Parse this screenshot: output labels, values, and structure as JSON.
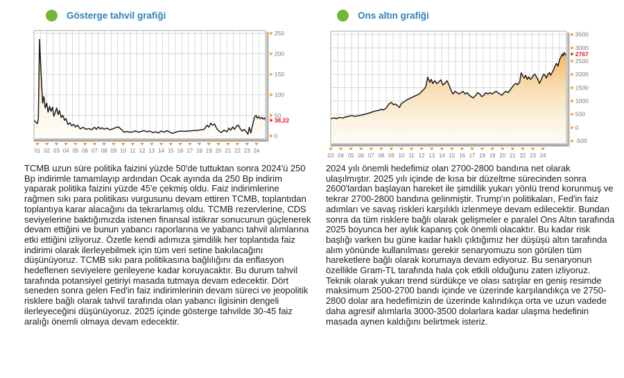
{
  "panels": [
    {
      "title": "Gösterge tahvil grafiği",
      "body": "TCMB uzun süre politika faizini yüzde 50'de tuttuktan sonra 2024'ü 250 Bp indirimle tamamlayıp ardından Ocak ayında da 250 Bp indirim yaparak politika faizini yüzde 45'e çekmiş oldu. Faiz indirimlerine rağmen sıkı para politikası vurgusunu devam ettiren TCMB, toplantıdan toplantıya karar alacağını da tekrarlamış oldu. TCMB rezervlerine, CDS seviyelerine baktığımızda istenen finansal istikrar sonucunun güçlenerek devam ettiğini ve bunun yabancı raporlarına ve yabancı tahvil alımlarına etki ettiğini izliyoruz. Özetle kendi adımıza şimdilik her toplantıda faiz indirimi olarak ilerleyebilmek için tüm veri setine bakılacağını düşünüyoruz. TCMB sıkı para politikasına bağlılığını da enflasyon hedeflenen seviyelere gerileyene kadar koruyacaktır. Bu durum tahvil tarafında potansiyel getiriyi masada tutmaya devam edecektir. Dört seneden sonra gelen Fed'in faiz indirimlerinin devam süreci ve jeopolitik risklere bağlı olarak tahvil tarafında olan yabancı ilgisinin dengeli ilerleyeceğini düşünüyoruz. 2025 içinde gösterge tahvilde 30-45 faiz aralığı önemli olmaya devam edecektir."
    },
    {
      "title": "Ons altın grafiği",
      "body": "2024 yılı önemli hedefimiz olan 2700-2800 bandına net olarak ulaşılmıştır. 2025 yılı içinde de kısa bir düzeltme sürecinden sonra 2600'lardan başlayan hareket ile şimdilik yukarı yönlü trend korunmuş ve tekrar 2700-2800 bandına gelinmiştir. Trump'ın politikaları, Fed'in faiz adımları ve savaş riskleri karşılıklı izlenmeye devam edilecektir. Bundan sonra da tüm risklere bağlı olarak gelişmeler e paralel Ons Altın tarafında 2025 boyunca her aylık kapanış çok önemli olacaktır. Bu kadar risk başlığı varken bu güne kadar haklı çıktığımız her düşüşü altın tarafında alım yönünde kullanılması gerekir senaryomuzu son görülen tüm hareketlere bağlı olarak korumaya devam ediyoruz. Bu senaryonun özellikle Gram-TL tarafında hala çok etkili olduğunu zaten izliyoruz. Teknik olarak yukarı trend sürdükçe ve olası satışlar en geniş resimde maksimum 2500-2700 bandı içinde ve üzerinde karşılandıkça ve 2750-2800 dolar ara hedefimizin de üzerinde kalındıkça orta ve uzun vadede daha agresif alımlarla 3000-3500 dolarlara kadar ulaşma hedefinin masada aynen kaldığını belirtmek isteriz."
    }
  ],
  "colors": {
    "accent_orange": "#f7941e",
    "alert_red": "#e8112d",
    "title_blue": "#2e82b8",
    "bullet_green": "#72b637",
    "tick_gray": "#77787b",
    "grid_gray": "#c9c9c9",
    "line_black": "#1b1b1b"
  },
  "chart_data": [
    {
      "type": "line",
      "title": "Gösterge tahvil grafiği",
      "legend_position": "none",
      "grid": true,
      "axis_side": "right",
      "x_tick_start": 1,
      "x_tick_labels": [
        "01",
        "02",
        "03",
        "04",
        "05",
        "06",
        "07",
        "08",
        "09",
        "10",
        "11",
        "12",
        "13",
        "14",
        "15",
        "16",
        "17",
        "18",
        "19",
        "20",
        "21",
        "22",
        "23",
        "24"
      ],
      "y_ticks": [
        250,
        200,
        150,
        100,
        50,
        0
      ],
      "y_tick_labels": [
        "250",
        "200",
        "150",
        "100",
        "50",
        "0"
      ],
      "xlim": [
        0.64,
        24.95
      ],
      "ylim": [
        -6.8,
        256.8
      ],
      "v_grid_count": 36,
      "last_value": 38.22,
      "last_value_label": "38,22",
      "series": [
        {
          "name": "Gösterge tahvil grafiği",
          "points": [
            [
              0.64,
              38
            ],
            [
              0.85,
              33
            ],
            [
              1.0,
              30
            ],
            [
              1.1,
              42
            ],
            [
              1.22,
              235
            ],
            [
              1.38,
              155
            ],
            [
              1.55,
              80
            ],
            [
              1.68,
              96
            ],
            [
              1.82,
              68
            ],
            [
              1.98,
              80
            ],
            [
              2.12,
              58
            ],
            [
              2.28,
              72
            ],
            [
              2.42,
              60
            ],
            [
              2.58,
              70
            ],
            [
              2.72,
              48
            ],
            [
              2.88,
              58
            ],
            [
              3.02,
              68
            ],
            [
              3.18,
              52
            ],
            [
              3.32,
              62
            ],
            [
              3.5,
              45
            ],
            [
              3.68,
              50
            ],
            [
              3.85,
              38
            ],
            [
              4.0,
              42
            ],
            [
              4.2,
              28
            ],
            [
              4.4,
              32
            ],
            [
              4.6,
              25
            ],
            [
              4.8,
              28
            ],
            [
              5.0,
              22
            ],
            [
              5.2,
              26
            ],
            [
              5.5,
              17
            ],
            [
              5.8,
              21
            ],
            [
              6.1,
              16
            ],
            [
              6.4,
              18
            ],
            [
              6.7,
              15
            ],
            [
              7.0,
              21
            ],
            [
              7.2,
              16
            ],
            [
              7.4,
              22
            ],
            [
              7.6,
              17
            ],
            [
              7.8,
              20
            ],
            [
              8.0,
              16
            ],
            [
              8.3,
              19
            ],
            [
              8.6,
              15
            ],
            [
              8.9,
              17
            ],
            [
              9.2,
              20
            ],
            [
              9.5,
              22
            ],
            [
              9.8,
              16
            ],
            [
              10.1,
              9
            ],
            [
              10.4,
              11
            ],
            [
              10.7,
              9
            ],
            [
              11.0,
              10
            ],
            [
              11.3,
              12
            ],
            [
              11.6,
              9
            ],
            [
              11.9,
              11
            ],
            [
              12.2,
              13
            ],
            [
              12.5,
              10
            ],
            [
              12.8,
              12
            ],
            [
              13.1,
              8
            ],
            [
              13.4,
              10
            ],
            [
              13.7,
              7
            ],
            [
              14.0,
              12
            ],
            [
              14.3,
              9
            ],
            [
              14.6,
              13
            ],
            [
              14.9,
              9
            ],
            [
              15.2,
              6
            ],
            [
              15.5,
              9
            ],
            [
              15.8,
              11
            ],
            [
              16.1,
              12
            ],
            [
              16.4,
              11
            ],
            [
              16.7,
              12
            ],
            [
              17.0,
              12
            ],
            [
              17.3,
              13
            ],
            [
              17.6,
              13
            ],
            [
              17.9,
              14
            ],
            [
              18.2,
              15
            ],
            [
              18.5,
              16
            ],
            [
              18.8,
              26
            ],
            [
              19.0,
              21
            ],
            [
              19.2,
              31
            ],
            [
              19.4,
              26
            ],
            [
              19.6,
              29
            ],
            [
              19.8,
              19
            ],
            [
              20.0,
              13
            ],
            [
              20.3,
              8
            ],
            [
              20.6,
              14
            ],
            [
              20.9,
              10
            ],
            [
              21.1,
              19
            ],
            [
              21.3,
              14
            ],
            [
              21.5,
              22
            ],
            [
              21.7,
              16
            ],
            [
              21.9,
              24
            ],
            [
              22.1,
              26
            ],
            [
              22.3,
              17
            ],
            [
              22.5,
              12
            ],
            [
              22.7,
              16
            ],
            [
              22.9,
              11
            ],
            [
              23.1,
              4
            ],
            [
              23.25,
              21
            ],
            [
              23.4,
              7
            ],
            [
              23.6,
              28
            ],
            [
              23.8,
              46
            ],
            [
              23.95,
              50
            ],
            [
              24.1,
              43
            ],
            [
              24.25,
              47
            ],
            [
              24.4,
              42
            ],
            [
              24.55,
              45
            ],
            [
              24.7,
              41
            ],
            [
              24.85,
              44
            ],
            [
              24.95,
              38.22
            ]
          ]
        }
      ]
    },
    {
      "type": "line",
      "title": "Ons altın grafiği",
      "legend_position": "none",
      "grid": true,
      "axis_side": "right",
      "x_tick_start": 3,
      "x_tick_labels": [
        "03",
        "04",
        "05",
        "06",
        "07",
        "08",
        "09",
        "10",
        "11",
        "12",
        "13",
        "14",
        "15",
        "16",
        "17",
        "18",
        "19",
        "20",
        "21",
        "22",
        "23",
        "24"
      ],
      "y_ticks": [
        3500,
        3000,
        2500,
        2000,
        1500,
        1000,
        500,
        0,
        -500
      ],
      "y_tick_labels": [
        "3500",
        "3000",
        "2500",
        "2000",
        "1500",
        "1000",
        "500",
        "0",
        "-500"
      ],
      "xlim": [
        3.0,
        26.33
      ],
      "ylim": [
        -600,
        3626
      ],
      "v_grid_count": 34,
      "last_value": 2767,
      "last_value_label": "2767",
      "series": [
        {
          "name": "Ons altın grafiği",
          "points": [
            [
              3.0,
              330
            ],
            [
              3.3,
              365
            ],
            [
              3.6,
              340
            ],
            [
              3.9,
              385
            ],
            [
              4.2,
              360
            ],
            [
              4.5,
              405
            ],
            [
              4.8,
              430
            ],
            [
              5.1,
              455
            ],
            [
              5.4,
              425
            ],
            [
              5.7,
              445
            ],
            [
              6.0,
              465
            ],
            [
              6.3,
              495
            ],
            [
              6.6,
              525
            ],
            [
              6.9,
              560
            ],
            [
              7.2,
              600
            ],
            [
              7.5,
              635
            ],
            [
              7.8,
              655
            ],
            [
              8.0,
              690
            ],
            [
              8.2,
              665
            ],
            [
              8.4,
              710
            ],
            [
              8.6,
              790
            ],
            [
              8.8,
              905
            ],
            [
              9.0,
              950
            ],
            [
              9.2,
              860
            ],
            [
              9.4,
              890
            ],
            [
              9.6,
              830
            ],
            [
              9.8,
              760
            ],
            [
              10.0,
              905
            ],
            [
              10.2,
              955
            ],
            [
              10.4,
              1010
            ],
            [
              10.6,
              1060
            ],
            [
              10.9,
              1110
            ],
            [
              11.2,
              1165
            ],
            [
              11.5,
              1220
            ],
            [
              11.8,
              1275
            ],
            [
              12.0,
              1360
            ],
            [
              12.2,
              1430
            ],
            [
              12.4,
              1530
            ],
            [
              12.6,
              1905
            ],
            [
              12.8,
              1705
            ],
            [
              12.95,
              1815
            ],
            [
              13.1,
              1660
            ],
            [
              13.3,
              1765
            ],
            [
              13.5,
              1655
            ],
            [
              13.7,
              1720
            ],
            [
              13.9,
              1795
            ],
            [
              14.1,
              1605
            ],
            [
              14.3,
              1670
            ],
            [
              14.5,
              1765
            ],
            [
              14.7,
              1615
            ],
            [
              14.9,
              1415
            ],
            [
              15.1,
              1265
            ],
            [
              15.3,
              1365
            ],
            [
              15.5,
              1315
            ],
            [
              15.7,
              1265
            ],
            [
              15.9,
              1315
            ],
            [
              16.1,
              1365
            ],
            [
              16.3,
              1265
            ],
            [
              16.5,
              1315
            ],
            [
              16.7,
              1215
            ],
            [
              16.9,
              1165
            ],
            [
              17.1,
              1115
            ],
            [
              17.35,
              1215
            ],
            [
              17.55,
              1315
            ],
            [
              17.75,
              1265
            ],
            [
              17.95,
              1165
            ],
            [
              18.15,
              1215
            ],
            [
              18.35,
              1315
            ],
            [
              18.55,
              1265
            ],
            [
              18.75,
              1315
            ],
            [
              18.95,
              1265
            ],
            [
              19.15,
              1315
            ],
            [
              19.35,
              1365
            ],
            [
              19.55,
              1315
            ],
            [
              19.75,
              1265
            ],
            [
              19.95,
              1215
            ],
            [
              20.15,
              1315
            ],
            [
              20.35,
              1365
            ],
            [
              20.55,
              1315
            ],
            [
              20.75,
              1415
            ],
            [
              20.95,
              1515
            ],
            [
              21.15,
              1615
            ],
            [
              21.35,
              1665
            ],
            [
              21.5,
              1615
            ],
            [
              21.7,
              1715
            ],
            [
              21.85,
              2060
            ],
            [
              22.0,
              1960
            ],
            [
              22.15,
              1865
            ],
            [
              22.3,
              1965
            ],
            [
              22.45,
              1815
            ],
            [
              22.6,
              1915
            ],
            [
              22.75,
              1815
            ],
            [
              22.9,
              1865
            ],
            [
              23.05,
              1965
            ],
            [
              23.2,
              2015
            ],
            [
              23.35,
              1915
            ],
            [
              23.5,
              1815
            ],
            [
              23.65,
              1665
            ],
            [
              23.8,
              1765
            ],
            [
              23.95,
              1915
            ],
            [
              24.1,
              2015
            ],
            [
              24.2,
              1965
            ],
            [
              24.35,
              1865
            ],
            [
              24.5,
              2015
            ],
            [
              24.65,
              2065
            ],
            [
              24.75,
              1965
            ],
            [
              24.9,
              2065
            ],
            [
              25.05,
              2165
            ],
            [
              25.2,
              2315
            ],
            [
              25.35,
              2415
            ],
            [
              25.5,
              2315
            ],
            [
              25.65,
              2565
            ],
            [
              25.8,
              2665
            ],
            [
              25.9,
              2765
            ],
            [
              26.0,
              2700
            ],
            [
              26.1,
              2825
            ],
            [
              26.2,
              2745
            ],
            [
              26.33,
              2767
            ]
          ]
        }
      ]
    }
  ]
}
